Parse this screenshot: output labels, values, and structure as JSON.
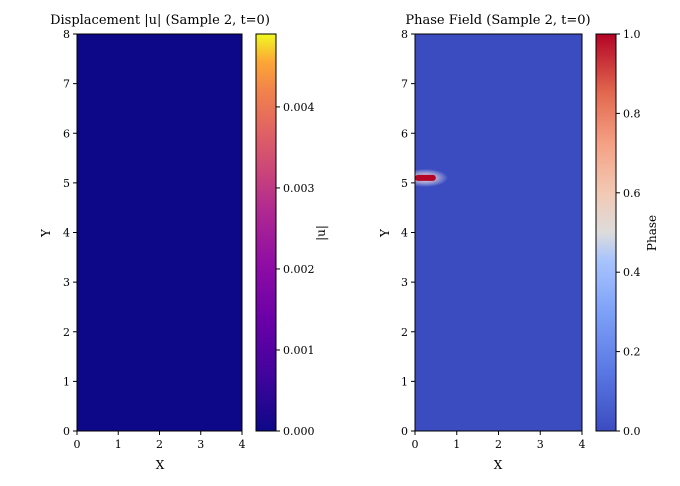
{
  "chart_data": [
    {
      "type": "heatmap",
      "title": "Displacement |u| (Sample 2, t=0)",
      "xlabel": "X",
      "ylabel": "Y",
      "xlim": [
        0,
        4
      ],
      "ylim": [
        0,
        8
      ],
      "xticks": [
        "0",
        "1",
        "2",
        "3",
        "4"
      ],
      "yticks": [
        "0",
        "1",
        "2",
        "3",
        "4",
        "5",
        "6",
        "7",
        "8"
      ],
      "field": {
        "description_value": "uniform",
        "value": 0.0
      },
      "colorbar": {
        "label": "|u|",
        "colormap": "plasma",
        "range": [
          0.0,
          0.0049
        ],
        "ticks": [
          "0.000",
          "0.001",
          "0.002",
          "0.003",
          "0.004"
        ],
        "tick_values": [
          0.0,
          0.001,
          0.002,
          0.003,
          0.004
        ]
      },
      "colors": {
        "field": "#0d0887"
      }
    },
    {
      "type": "heatmap",
      "title": "Phase Field (Sample 2, t=0)",
      "xlabel": "X",
      "ylabel": "Y",
      "xlim": [
        0,
        4
      ],
      "ylim": [
        0,
        8
      ],
      "xticks": [
        "0",
        "1",
        "2",
        "3",
        "4"
      ],
      "yticks": [
        "0",
        "1",
        "2",
        "3",
        "4",
        "5",
        "6",
        "7",
        "8"
      ],
      "field": {
        "background_value": 0.0
      },
      "crack": {
        "x_start": 0.0,
        "x_end": 0.5,
        "y": 5.1,
        "value": 1.0
      },
      "colorbar": {
        "label": "Phase",
        "colormap": "coolwarm",
        "range": [
          0.0,
          1.0
        ],
        "ticks": [
          "0.0",
          "0.2",
          "0.4",
          "0.6",
          "0.8",
          "1.0"
        ],
        "tick_values": [
          0.0,
          0.2,
          0.4,
          0.6,
          0.8,
          1.0
        ]
      },
      "colors": {
        "field": "#3b4cc0",
        "crack": "#b40426"
      }
    }
  ]
}
